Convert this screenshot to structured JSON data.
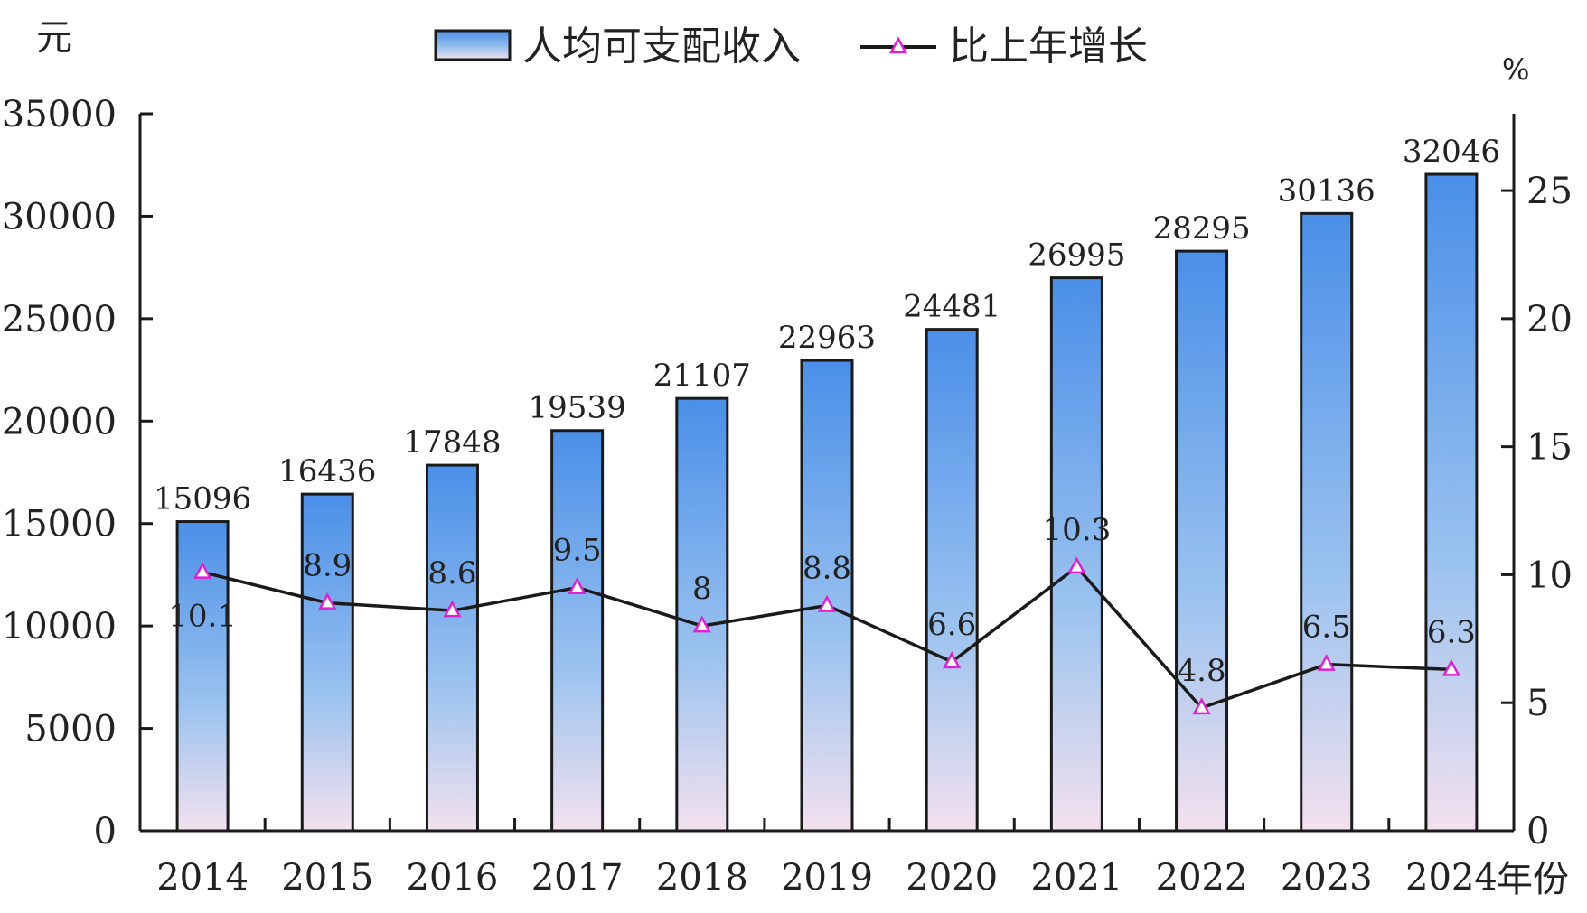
{
  "chart_data": {
    "type": "bar",
    "categories": [
      "2014",
      "2015",
      "2016",
      "2017",
      "2018",
      "2019",
      "2020",
      "2021",
      "2022",
      "2023",
      "2024"
    ],
    "series": [
      {
        "name": "人均可支配收入",
        "type": "bar",
        "axis": "left",
        "values": [
          15096,
          16436,
          17848,
          19539,
          21107,
          22963,
          24481,
          26995,
          28295,
          30136,
          32046
        ],
        "labels": [
          "15096",
          "16436",
          "17848",
          "19539",
          "21107",
          "22963",
          "24481",
          "26995",
          "28295",
          "30136",
          "32046"
        ]
      },
      {
        "name": "比上年增长",
        "type": "line",
        "axis": "right",
        "values": [
          10.1,
          8.9,
          8.6,
          9.5,
          8,
          8.8,
          6.6,
          10.3,
          4.8,
          6.5,
          6.3
        ],
        "labels": [
          "10.1",
          "8.9",
          "8.6",
          "9.5",
          "8",
          "8.8",
          "6.6",
          "10.3",
          "4.8",
          "6.5",
          "6.3"
        ]
      }
    ],
    "ylabel": "元",
    "y2label": "%",
    "xunit": "年份",
    "ylim": [
      0,
      35000
    ],
    "y2lim": [
      0,
      28
    ],
    "yticks": [
      "0",
      "5000",
      "10000",
      "15000",
      "20000",
      "25000",
      "30000",
      "35000"
    ],
    "y2ticks": [
      "0",
      "5",
      "10",
      "15",
      "20",
      "25"
    ],
    "legend": "top-center",
    "grid": false,
    "colors": {
      "bar_top": "#4a8fe8",
      "bar_bottom": "#f3e1ee",
      "bar_stroke": "#1a1a1a",
      "line": "#1a1a1a",
      "marker": "#e020d0"
    }
  }
}
